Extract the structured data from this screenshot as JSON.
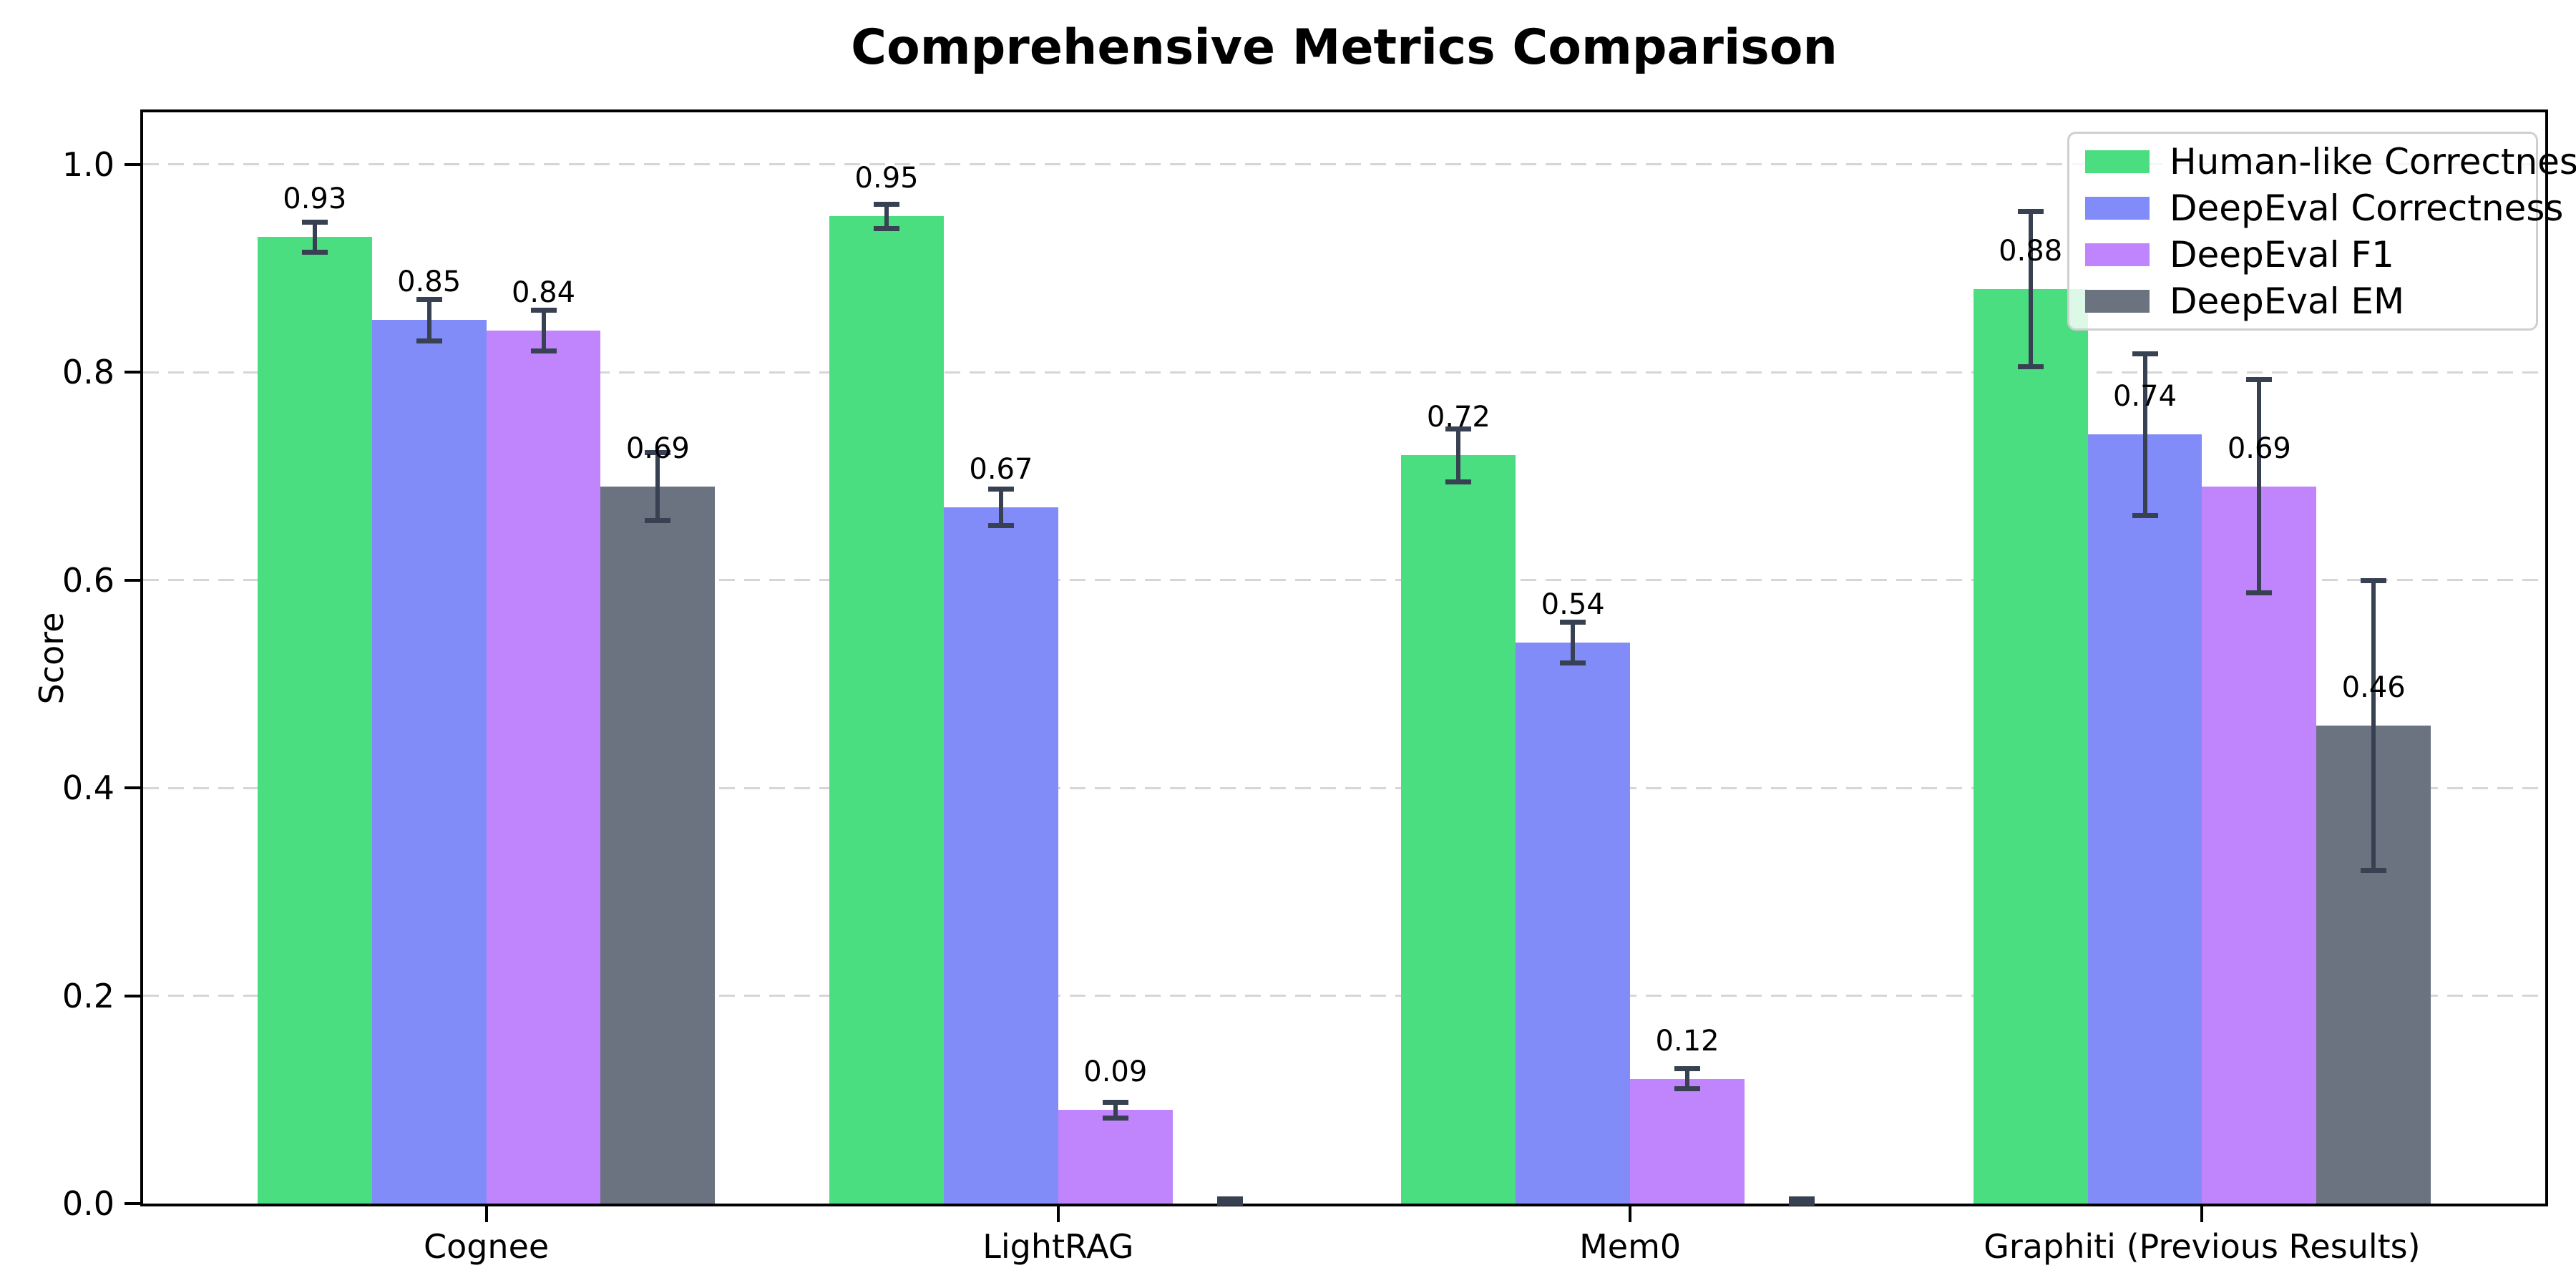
{
  "chart_data": {
    "type": "bar",
    "title": "Comprehensive Metrics Comparison",
    "ylabel": "Score",
    "xlabel": "",
    "categories": [
      "Cognee",
      "LightRAG",
      "Mem0",
      "Graphiti (Previous Results)"
    ],
    "series": [
      {
        "name": "Human-like Correctness",
        "color": "#4ade80",
        "values": [
          0.93,
          0.95,
          0.72,
          0.88
        ],
        "errors": [
          0.015,
          0.012,
          0.026,
          0.075
        ],
        "labels": [
          "0.93",
          "0.95",
          "0.72",
          "0.88"
        ]
      },
      {
        "name": "DeepEval Correctness",
        "color": "#818cf8",
        "values": [
          0.85,
          0.67,
          0.54,
          0.74
        ],
        "errors": [
          0.02,
          0.018,
          0.02,
          0.078
        ],
        "labels": [
          "0.85",
          "0.67",
          "0.54",
          "0.74"
        ]
      },
      {
        "name": "DeepEval F1",
        "color": "#c084fc",
        "values": [
          0.84,
          0.09,
          0.12,
          0.69
        ],
        "errors": [
          0.02,
          0.008,
          0.01,
          0.103
        ],
        "labels": [
          "0.84",
          "0.09",
          "0.12",
          "0.69"
        ]
      },
      {
        "name": "DeepEval EM",
        "color": "#6b7280",
        "values": [
          0.69,
          0.0,
          0.0,
          0.46
        ],
        "errors": [
          0.033,
          0.005,
          0.005,
          0.14
        ],
        "labels": [
          "0.69",
          "",
          "",
          "0.46"
        ]
      }
    ],
    "ylim": [
      0,
      1.05
    ],
    "yticks": [
      {
        "value": 0.0,
        "label": "0.0"
      },
      {
        "value": 0.2,
        "label": "0.2"
      },
      {
        "value": 0.4,
        "label": "0.4"
      },
      {
        "value": 0.6,
        "label": "0.6"
      },
      {
        "value": 0.8,
        "label": "0.8"
      },
      {
        "value": 1.0,
        "label": "1.0"
      }
    ],
    "grid": "horizontal-dashed",
    "legend_position": "upper right",
    "bar_group_width": 0.8,
    "colors": {
      "error_bar": "#374151",
      "gridline": "#d6d6d6",
      "spine": "#000000",
      "background": "#ffffff"
    }
  }
}
